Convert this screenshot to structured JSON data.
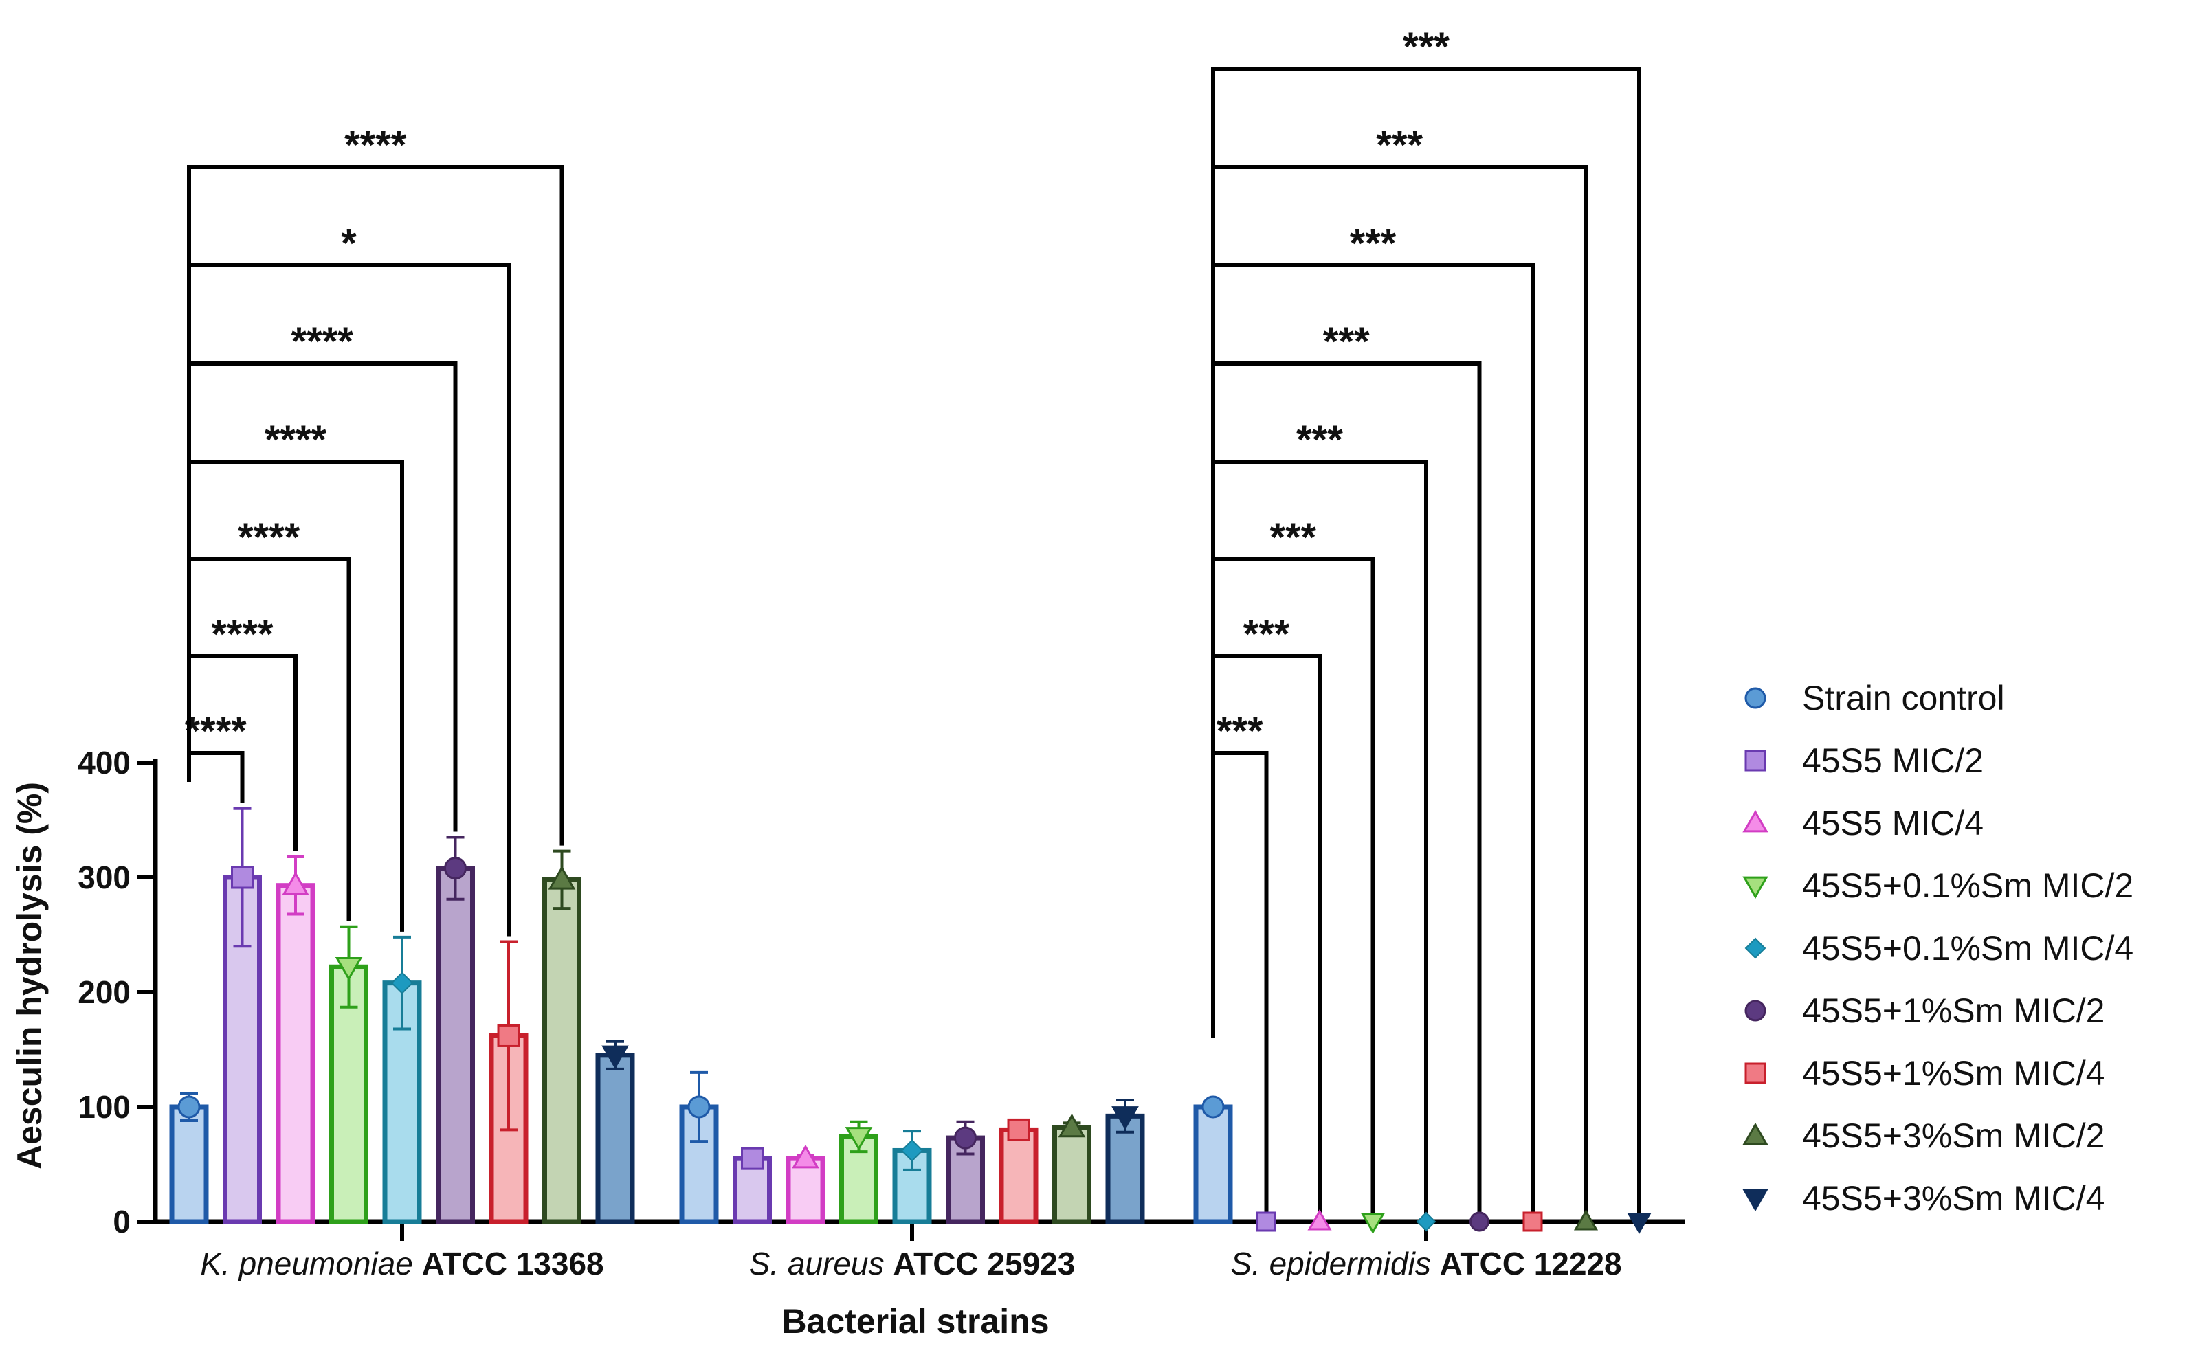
{
  "chart_data": {
    "type": "bar",
    "ylabel": "Aesculin hydrolysis (%)",
    "xlabel": "Bacterial strains",
    "ylim": [
      0,
      400
    ],
    "yticks": [
      "0",
      "100",
      "200",
      "300",
      "400"
    ],
    "legend_position": "right",
    "groups": [
      {
        "italic": "K. pneumoniae",
        "bold": "ATCC 13368"
      },
      {
        "italic": "S. aureus",
        "bold": "ATCC 25923"
      },
      {
        "italic": "S. epidermidis",
        "bold": "ATCC 12228"
      }
    ],
    "series": [
      {
        "name": "Strain control",
        "marker": "circle",
        "fill": "#b9d3ef",
        "edge": "#1f5aa8",
        "mcolor": "#5b9bd5",
        "values": [
          100,
          100,
          100
        ],
        "errors": [
          12,
          30,
          0
        ]
      },
      {
        "name": "45S5 MIC/2",
        "marker": "square",
        "fill": "#d9c8ee",
        "edge": "#6a3ab0",
        "mcolor": "#b08ae0",
        "values": [
          300,
          55,
          0
        ],
        "errors": [
          60,
          3,
          0
        ]
      },
      {
        "name": "45S5 MIC/4",
        "marker": "triangle-up",
        "fill": "#f8ccf4",
        "edge": "#d23dc4",
        "mcolor": "#f48ce8",
        "values": [
          293,
          55,
          0
        ],
        "errors": [
          25,
          3,
          0
        ]
      },
      {
        "name": "45S5+0.1%Sm MIC/2",
        "marker": "triangle-down",
        "fill": "#c9efb8",
        "edge": "#2ea01a",
        "mcolor": "#a6e07e",
        "values": [
          222,
          74,
          0
        ],
        "errors": [
          35,
          13,
          0
        ]
      },
      {
        "name": "45S5+0.1%Sm MIC/4",
        "marker": "diamond",
        "fill": "#a9dced",
        "edge": "#177d97",
        "mcolor": "#1d9ac0",
        "values": [
          208,
          62,
          0
        ],
        "errors": [
          40,
          17,
          0
        ]
      },
      {
        "name": "45S5+1%Sm MIC/2",
        "marker": "circle",
        "fill": "#b8a4cc",
        "edge": "#45265f",
        "mcolor": "#5c3a80",
        "values": [
          308,
          73,
          0
        ],
        "errors": [
          27,
          14,
          0
        ]
      },
      {
        "name": "45S5+1%Sm MIC/4",
        "marker": "square",
        "fill": "#f6b5b8",
        "edge": "#c8202c",
        "mcolor": "#f07a84",
        "values": [
          162,
          80,
          0
        ],
        "errors": [
          82,
          5,
          0
        ]
      },
      {
        "name": "45S5+3%Sm MIC/2",
        "marker": "triangle-up",
        "fill": "#c3d4b3",
        "edge": "#2e4a20",
        "mcolor": "#5b7a44",
        "values": [
          298,
          82,
          0
        ],
        "errors": [
          25,
          4,
          0
        ]
      },
      {
        "name": "45S5+3%Sm MIC/4",
        "marker": "triangle-down",
        "fill": "#7aa3cb",
        "edge": "#0f2d5a",
        "mcolor": "#0f2d5a",
        "values": [
          145,
          92,
          0
        ],
        "errors": [
          12,
          14,
          0
        ]
      }
    ],
    "annotations": [
      {
        "group": 0,
        "from": 0,
        "to": 1,
        "label": "****"
      },
      {
        "group": 0,
        "from": 0,
        "to": 2,
        "label": "****"
      },
      {
        "group": 0,
        "from": 0,
        "to": 3,
        "label": "****"
      },
      {
        "group": 0,
        "from": 0,
        "to": 4,
        "label": "****"
      },
      {
        "group": 0,
        "from": 0,
        "to": 5,
        "label": "****"
      },
      {
        "group": 0,
        "from": 0,
        "to": 6,
        "label": "*"
      },
      {
        "group": 0,
        "from": 0,
        "to": 7,
        "label": "****"
      },
      {
        "group": 2,
        "from": 0,
        "to": 1,
        "label": "***"
      },
      {
        "group": 2,
        "from": 0,
        "to": 2,
        "label": "***"
      },
      {
        "group": 2,
        "from": 0,
        "to": 3,
        "label": "***"
      },
      {
        "group": 2,
        "from": 0,
        "to": 4,
        "label": "***"
      },
      {
        "group": 2,
        "from": 0,
        "to": 5,
        "label": "***"
      },
      {
        "group": 2,
        "from": 0,
        "to": 6,
        "label": "***"
      },
      {
        "group": 2,
        "from": 0,
        "to": 7,
        "label": "***"
      },
      {
        "group": 2,
        "from": 0,
        "to": 8,
        "label": "***"
      }
    ]
  }
}
